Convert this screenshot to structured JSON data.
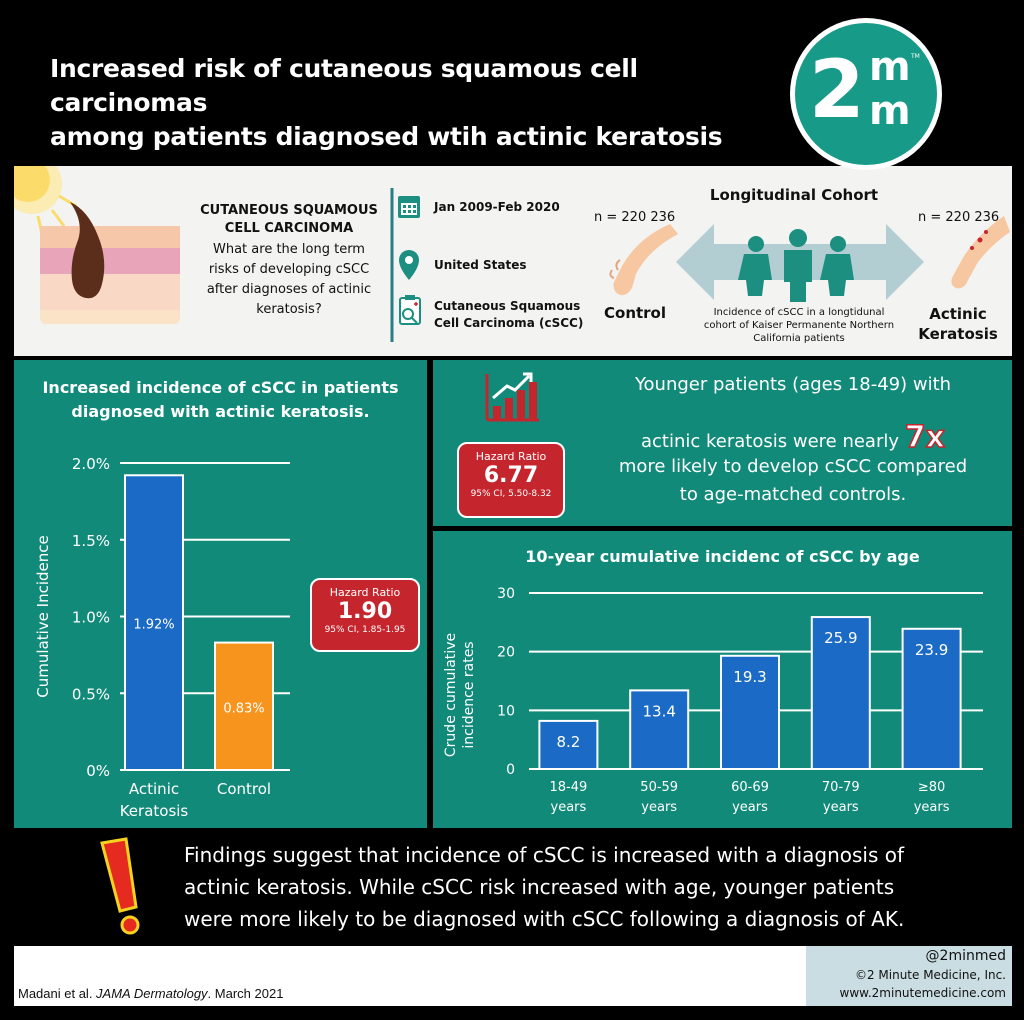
{
  "header": {
    "title_line1": "Increased risk of cutaneous squamous cell carcinomas",
    "title_line2": "among patients diagnosed wtih actinic keratosis"
  },
  "logo": {
    "main": "2",
    "sup": "m",
    "sub": "m",
    "tm": "TM"
  },
  "info": {
    "topic_title_line1": "CUTANEOUS SQUAMOUS",
    "topic_title_line2": "CELL CARCINOMA",
    "question_line1": "What are the long term",
    "question_line2": "risks of developing cSCC",
    "question_line3": "after diagnoses of actinic",
    "question_line4": "keratosis?",
    "date": "Jan 2009-Feb 2020",
    "location": "United States",
    "outcome_line1": "Cutaneous Squamous",
    "outcome_line2": "Cell Carcinoma (cSCC)",
    "cohort_title": "Longitudinal Cohort",
    "n_control": "n = 220 236",
    "n_ak": "n = 220 236",
    "control_label": "Control",
    "ak_label_line1": "Actinic",
    "ak_label_line2": "Keratosis",
    "cohort_desc_line1": "Incidence of cSCC in a longtidunal",
    "cohort_desc_line2": "cohort of Kaiser Permanente Northern",
    "cohort_desc_line3": "California patients"
  },
  "left_panel": {
    "heading_line1": "Increased incidence of cSCC in patients",
    "heading_line2": "diagnosed with actinic keratosis.",
    "hr_label": "Hazard Ratio",
    "hr_value": "1.90",
    "hr_ci": "95% CI, 1.85-1.95"
  },
  "top_right": {
    "hr_label": "Hazard Ratio",
    "hr_value": "6.77",
    "hr_ci": "95% CI, 5.50-8.32",
    "line1": "Younger patients (ages 18-49) with",
    "line2a": "actinic keratosis were nearly",
    "line2b": "7x",
    "line3": "more likely to develop cSCC compared",
    "line4": "to age-matched controls."
  },
  "conclusion": {
    "line1": "Findings suggest that incidence of cSCC is increased with a diagnosis of",
    "line2": "actinic keratosis. While cSCC risk increased with age, younger patients",
    "line3": "were more likely to be diagnosed with cSCC following a diagnosis of AK."
  },
  "footer": {
    "citation_pre": "Madani et al. ",
    "citation_journal": "JAMA Dermatology",
    "citation_post": ". March 2021",
    "handle": "@2minmed",
    "company": "©2 Minute Medicine, Inc.",
    "website": "www.2minutemedicine.com"
  },
  "colors": {
    "teal": "#128a79",
    "blue_bar": "#1b6bc6",
    "orange_bar": "#f7941d",
    "red_badge": "#c5262d"
  },
  "chart_data": [
    {
      "type": "bar",
      "title": "",
      "xlabel": "",
      "ylabel": "Cumulative Incidence",
      "categories": [
        "Actinic Keratosis",
        "Control"
      ],
      "category_lines": [
        [
          "Actinic",
          "Keratosis"
        ],
        [
          "Control"
        ]
      ],
      "values": [
        1.92,
        0.83
      ],
      "value_labels": [
        "1.92%",
        "0.83%"
      ],
      "bar_colors": [
        "#1b6bc6",
        "#f7941d"
      ],
      "ylim": [
        0,
        2.0
      ],
      "yticks": [
        0,
        0.5,
        1.0,
        1.5,
        2.0
      ],
      "ytick_labels": [
        "0%",
        "0.5%",
        "1.0%",
        "1.5%",
        "2.0%"
      ],
      "grid": true
    },
    {
      "type": "bar",
      "title": "10-year cumulative incidenc of cSCC by age",
      "xlabel": "",
      "ylabel": "Crude cumulative incidence rates",
      "ylabel_lines": [
        "Crude cumulative",
        "incidence rates"
      ],
      "categories": [
        "18-49 years",
        "50-59 years",
        "60-69 years",
        "70-79 years",
        "≥80 years"
      ],
      "category_lines": [
        [
          "18-49",
          "years"
        ],
        [
          "50-59",
          "years"
        ],
        [
          "60-69",
          "years"
        ],
        [
          "70-79",
          "years"
        ],
        [
          "≥80",
          "years"
        ]
      ],
      "values": [
        8.2,
        13.4,
        19.3,
        25.9,
        23.9
      ],
      "value_labels": [
        "8.2",
        "13.4",
        "19.3",
        "25.9",
        "23.9"
      ],
      "bar_color": "#1b6bc6",
      "ylim": [
        0,
        30
      ],
      "yticks": [
        0,
        10,
        20,
        30
      ],
      "ytick_labels": [
        "0",
        "10",
        "20",
        "30"
      ],
      "grid": true
    }
  ]
}
